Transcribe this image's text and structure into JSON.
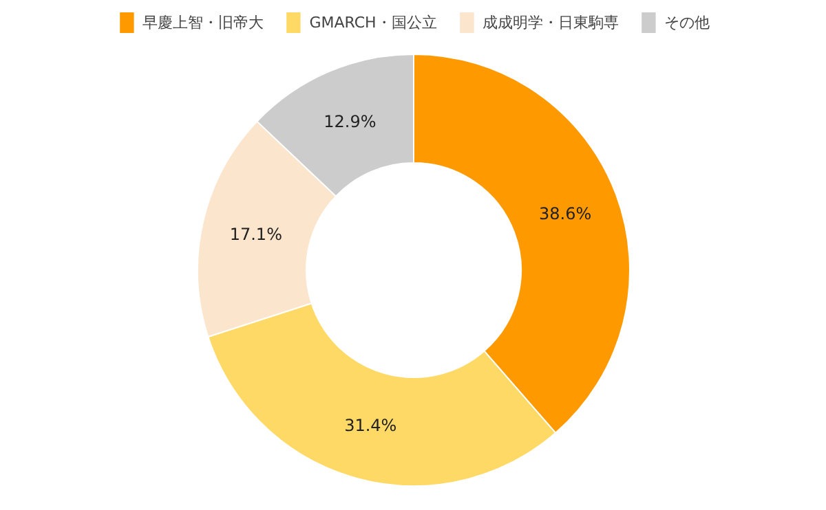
{
  "chart_data": {
    "type": "donut",
    "categories": [
      "早慶上智・旧帝大",
      "GMARCH・国公立",
      "成成明学・日東駒専",
      "その他"
    ],
    "values": [
      38.6,
      31.4,
      17.1,
      12.9
    ],
    "colors": [
      "#ff9900",
      "#ffd966",
      "#fce5cd",
      "#cccccc"
    ],
    "value_labels": [
      "38.6%",
      "31.4%",
      "17.1%",
      "12.9%"
    ],
    "legend": "top"
  }
}
